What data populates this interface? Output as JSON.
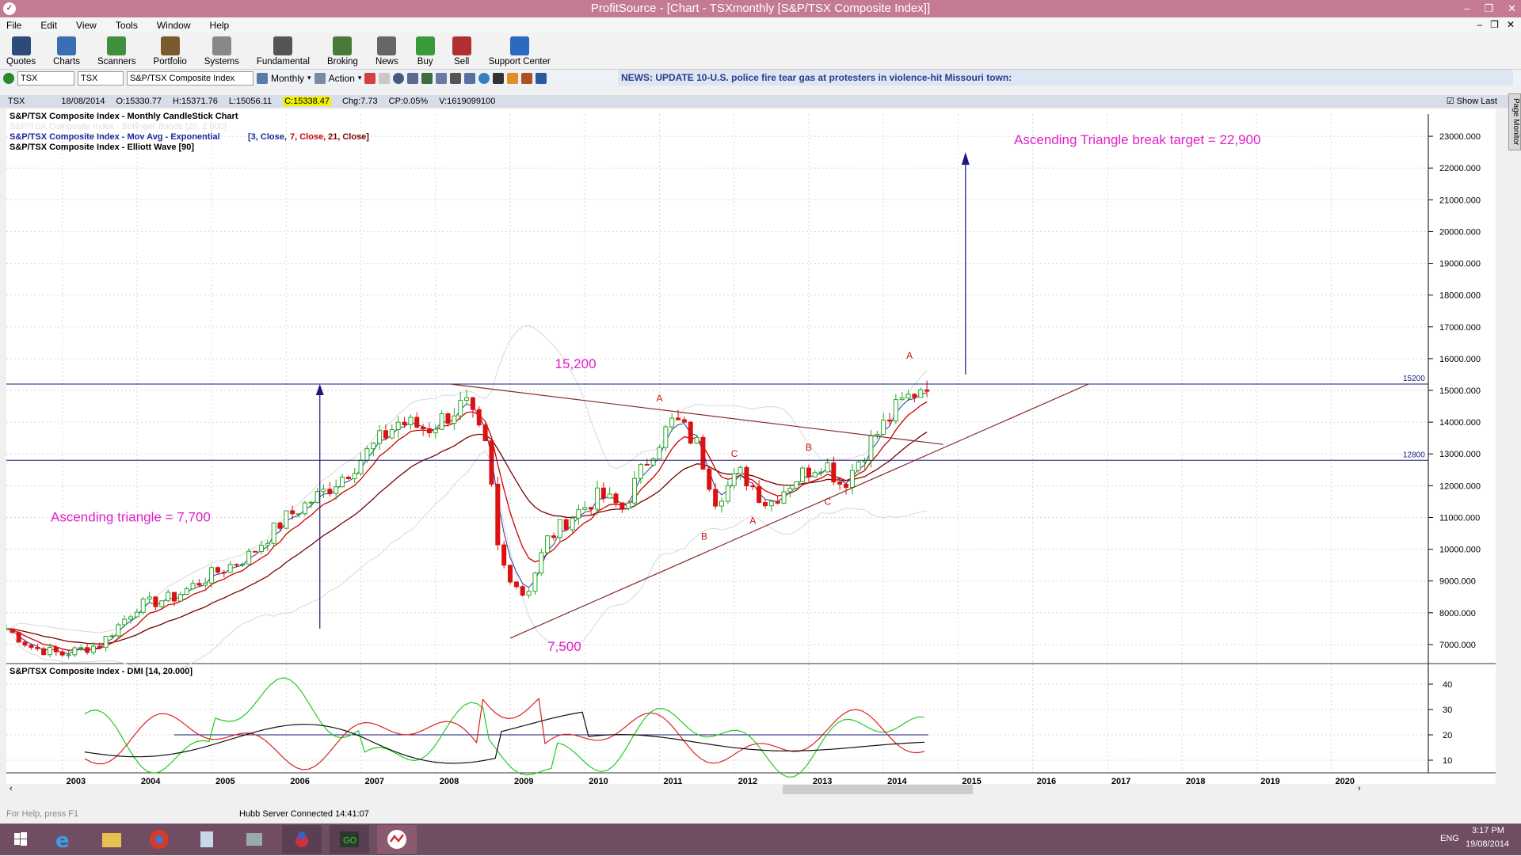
{
  "window": {
    "title": "ProfitSource - [Chart - TSXmonthly [S&P/TSX Composite Index]]"
  },
  "menu": [
    "File",
    "Edit",
    "View",
    "Tools",
    "Window",
    "Help"
  ],
  "toolbar": [
    {
      "label": "Quotes",
      "icon": "quotes-icon",
      "color": "#2c4a7a"
    },
    {
      "label": "Charts",
      "icon": "charts-icon",
      "color": "#3a6fb5"
    },
    {
      "label": "Scanners",
      "icon": "scanners-icon",
      "color": "#3f8f3f"
    },
    {
      "label": "Portfolio",
      "icon": "portfolio-icon",
      "color": "#7a5a2e"
    },
    {
      "label": "Systems",
      "icon": "systems-icon",
      "color": "#888888"
    },
    {
      "label": "Fundamental",
      "icon": "fundamental-icon",
      "color": "#555555"
    },
    {
      "label": "Broking",
      "icon": "broking-icon",
      "color": "#4a7a3a"
    },
    {
      "label": "News",
      "icon": "news-icon",
      "color": "#666666"
    },
    {
      "label": "Buy",
      "icon": "buy-icon",
      "color": "#3a9a3a"
    },
    {
      "label": "Sell",
      "icon": "sell-icon",
      "color": "#b03030"
    },
    {
      "label": "Support Center",
      "icon": "help-icon",
      "color": "#2a6ac0"
    }
  ],
  "symbolbar": {
    "code": "TSX",
    "exchange": "TSX",
    "name": "S&P/TSX Composite Index",
    "period": "Monthly",
    "action": "Action"
  },
  "news": "NEWS: UPDATE 10-U.S. police fire tear gas at protesters in violence-hit Missouri town:",
  "info": {
    "symbol": "TSX",
    "date": "18/08/2014",
    "open": "O:15330.77",
    "high": "H:15371.76",
    "low": "L:15056.11",
    "close": "C:15338.47",
    "chg": "Chg:7.73",
    "cp": "CP:0.05%",
    "vol": "V:1619099100",
    "show_last": "Show Last"
  },
  "legend": {
    "l1": "S&P/TSX Composite Index - Monthly CandleStick Chart",
    "l2": "S&P/TSX Composite Index - Bollinger Bands [20, 2.000]",
    "l3a": "S&P/TSX Composite Index - Mov Avg - Exponential",
    "l3b": "[3, Close,",
    "l3c": "7, Close,",
    "l3d": "21, Close]",
    "l4": "S&P/TSX Composite Index - Elliott Wave [90]",
    "dmi": "S&P/TSX Composite Index - DMI [14, 20.000]"
  },
  "annotations": {
    "target": "Ascending Triangle break target = 22,900",
    "triangle": "Ascending triangle = 7,700",
    "top": "15,200",
    "bottom": "7,500",
    "line_top": "15200",
    "line_mid": "12800"
  },
  "colors": {
    "annotation": "#e020c8",
    "bull": "#22aa22",
    "bear": "#dd1111",
    "ma_red": "#cc0000",
    "ma_dark": "#7a0000",
    "line": "#1a1a7a",
    "trend": "#8a2a2a"
  },
  "chart_data": {
    "type": "candlestick",
    "title": "S&P/TSX Composite Index - Monthly CandleStick Chart",
    "ylim": [
      6400,
      23700
    ],
    "yticks": [
      23000,
      22000,
      21000,
      20000,
      19000,
      18000,
      17000,
      16000,
      15000,
      14000,
      13000,
      12000,
      11000,
      10000,
      9000,
      8000,
      7000
    ],
    "ytick_labels": [
      "23000.000",
      "22000.000",
      "21000.000",
      "20000.000",
      "19000.000",
      "18000.000",
      "17000.000",
      "16000.000",
      "15000.000",
      "14000.000",
      "13000.000",
      "12000.000",
      "11000.000",
      "10000.000",
      "9000.000",
      "8000.000",
      "7000.000"
    ],
    "xlim": [
      2002.25,
      2021.3
    ],
    "years": [
      "2003",
      "2004",
      "2005",
      "2006",
      "2007",
      "2008",
      "2009",
      "2010",
      "2011",
      "2012",
      "2013",
      "2014",
      "2015",
      "2016",
      "2017",
      "2018",
      "2019",
      "2020"
    ],
    "close_anchors": [
      [
        2002.25,
        7500
      ],
      [
        2002.6,
        6900
      ],
      [
        2003.0,
        6700
      ],
      [
        2003.5,
        7000
      ],
      [
        2004.0,
        8200
      ],
      [
        2004.5,
        8500
      ],
      [
        2005.0,
        9200
      ],
      [
        2005.5,
        9800
      ],
      [
        2006.0,
        11000
      ],
      [
        2006.5,
        11800
      ],
      [
        2006.8,
        12400
      ],
      [
        2007.5,
        14000
      ],
      [
        2007.9,
        13800
      ],
      [
        2008.4,
        14600
      ],
      [
        2008.7,
        13000
      ],
      [
        2008.85,
        9700
      ],
      [
        2009.2,
        8500
      ],
      [
        2009.5,
        10300
      ],
      [
        2009.8,
        11000
      ],
      [
        2010.2,
        11700
      ],
      [
        2010.5,
        11300
      ],
      [
        2010.9,
        13100
      ],
      [
        2011.2,
        14100
      ],
      [
        2011.5,
        13300
      ],
      [
        2011.75,
        11600
      ],
      [
        2012.1,
        12400
      ],
      [
        2012.45,
        11400
      ],
      [
        2012.8,
        12200
      ],
      [
        2013.2,
        12800
      ],
      [
        2013.45,
        12000
      ],
      [
        2013.8,
        13300
      ],
      [
        2014.2,
        14500
      ],
      [
        2014.6,
        15330
      ]
    ],
    "horizontal_lines": [
      15200,
      12800
    ],
    "waves": [
      {
        "label": "A",
        "x": 2011.0,
        "y": 14650
      },
      {
        "label": "B",
        "x": 2011.6,
        "y": 10300
      },
      {
        "label": "C",
        "x": 2012.0,
        "y": 12900
      },
      {
        "label": "A",
        "x": 2012.25,
        "y": 10800
      },
      {
        "label": "B",
        "x": 2013.0,
        "y": 13100
      },
      {
        "label": "C",
        "x": 2013.25,
        "y": 11400
      },
      {
        "label": "A",
        "x": 2014.35,
        "y": 16000
      }
    ],
    "dmi": {
      "ylim": [
        5,
        45
      ],
      "yticks": [
        40,
        30,
        20,
        10
      ],
      "adx_level": 20
    }
  },
  "status": {
    "left": "For Help, press F1",
    "hubb": "Hubb Server Connected 14:41:07"
  },
  "taskbar": {
    "lang": "ENG",
    "time": "3:17 PM",
    "date": "19/08/2014"
  }
}
